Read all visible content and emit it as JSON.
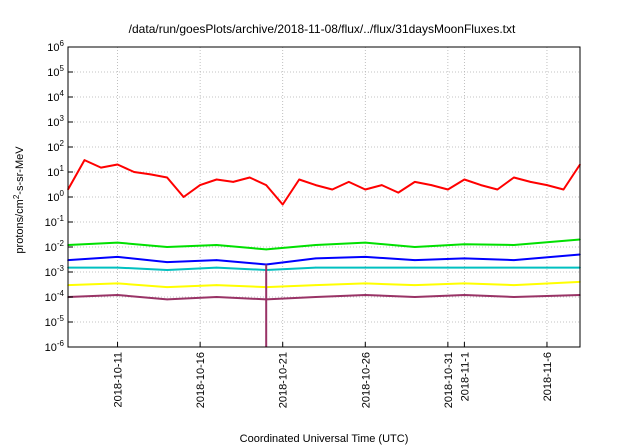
{
  "chart_data": {
    "type": "line",
    "title": "/data/run/goesPlots/archive/2018-11-08/flux/../flux/31daysMoonFluxes.txt",
    "xlabel": "Coordinated Universal Time (UTC)",
    "ylabel_base": "protons/cm",
    "ylabel_sup": "2",
    "ylabel_rest": "-s-sr-MeV",
    "y_scale": "log",
    "ylim": [
      1e-06,
      1000000.0
    ],
    "y_ticks": [
      {
        "exp": "-6",
        "value": 1e-06
      },
      {
        "exp": "-5",
        "value": 1e-05
      },
      {
        "exp": "-4",
        "value": 0.0001
      },
      {
        "exp": "-3",
        "value": 0.001
      },
      {
        "exp": "-2",
        "value": 0.01
      },
      {
        "exp": "-1",
        "value": 0.1
      },
      {
        "exp": "0",
        "value": 1
      },
      {
        "exp": "1",
        "value": 10
      },
      {
        "exp": "2",
        "value": 100
      },
      {
        "exp": "3",
        "value": 1000
      },
      {
        "exp": "4",
        "value": 10000
      },
      {
        "exp": "5",
        "value": 100000
      },
      {
        "exp": "6",
        "value": 1000000
      }
    ],
    "y_tick_base": "10",
    "xlim": [
      "2018-10-08",
      "2018-11-08"
    ],
    "x_ticks": [
      "2018-10-11",
      "2018-10-16",
      "2018-10-21",
      "2018-10-26",
      "2018-10-31",
      "2018-11-1",
      "2018-11-6"
    ],
    "grid": true,
    "legend": "none",
    "series": [
      {
        "color": "#ff0000",
        "x": [
          "2018-10-08",
          "2018-10-09",
          "2018-10-10",
          "2018-10-11",
          "2018-10-12",
          "2018-10-13",
          "2018-10-14",
          "2018-10-15",
          "2018-10-16",
          "2018-10-17",
          "2018-10-18",
          "2018-10-19",
          "2018-10-20",
          "2018-10-21",
          "2018-10-22",
          "2018-10-23",
          "2018-10-24",
          "2018-10-25",
          "2018-10-26",
          "2018-10-27",
          "2018-10-28",
          "2018-10-29",
          "2018-10-30",
          "2018-10-31",
          "2018-11-01",
          "2018-11-02",
          "2018-11-03",
          "2018-11-04",
          "2018-11-05",
          "2018-11-06",
          "2018-11-07",
          "2018-11-08"
        ],
        "values": [
          2,
          30,
          15,
          20,
          10,
          8,
          6,
          1,
          3,
          5,
          4,
          6,
          3,
          0.5,
          5,
          3,
          2,
          4,
          2,
          3,
          1.5,
          4,
          3,
          2,
          5,
          3,
          2,
          6,
          4,
          3,
          2,
          20
        ]
      },
      {
        "color": "#00e000",
        "x": [
          "2018-10-08",
          "2018-10-11",
          "2018-10-14",
          "2018-10-17",
          "2018-10-20",
          "2018-10-23",
          "2018-10-26",
          "2018-10-29",
          "2018-11-01",
          "2018-11-04",
          "2018-11-08"
        ],
        "values": [
          0.012,
          0.015,
          0.01,
          0.012,
          0.008,
          0.012,
          0.015,
          0.01,
          0.013,
          0.012,
          0.02
        ]
      },
      {
        "color": "#0000ff",
        "x": [
          "2018-10-08",
          "2018-10-11",
          "2018-10-14",
          "2018-10-17",
          "2018-10-20",
          "2018-10-23",
          "2018-10-26",
          "2018-10-29",
          "2018-11-01",
          "2018-11-04",
          "2018-11-08"
        ],
        "values": [
          0.003,
          0.004,
          0.0025,
          0.003,
          0.002,
          0.0035,
          0.004,
          0.003,
          0.0035,
          0.003,
          0.005
        ]
      },
      {
        "color": "#00c0c0",
        "x": [
          "2018-10-08",
          "2018-10-11",
          "2018-10-14",
          "2018-10-17",
          "2018-10-20",
          "2018-10-23",
          "2018-10-26",
          "2018-10-29",
          "2018-11-01",
          "2018-11-04",
          "2018-11-08"
        ],
        "values": [
          0.0015,
          0.0015,
          0.0012,
          0.0015,
          0.0012,
          0.0015,
          0.0015,
          0.0015,
          0.0015,
          0.0015,
          0.0015
        ]
      },
      {
        "color": "#ffff00",
        "x": [
          "2018-10-08",
          "2018-10-11",
          "2018-10-14",
          "2018-10-17",
          "2018-10-20",
          "2018-10-23",
          "2018-10-26",
          "2018-10-29",
          "2018-11-01",
          "2018-11-04",
          "2018-11-08"
        ],
        "values": [
          0.0003,
          0.00035,
          0.00025,
          0.0003,
          0.00025,
          0.0003,
          0.00035,
          0.0003,
          0.00035,
          0.0003,
          0.0004
        ]
      },
      {
        "color": "#993366",
        "x": [
          "2018-10-08",
          "2018-10-11",
          "2018-10-14",
          "2018-10-17",
          "2018-10-20",
          "2018-10-23",
          "2018-10-26",
          "2018-10-29",
          "2018-11-01",
          "2018-11-04",
          "2018-11-08"
        ],
        "values": [
          0.0001,
          0.00012,
          8e-05,
          0.0001,
          8e-05,
          0.0001,
          0.00012,
          0.0001,
          0.00012,
          0.0001,
          0.00012
        ]
      }
    ],
    "spike": {
      "x": "2018-10-20",
      "value": 1e-06
    }
  }
}
